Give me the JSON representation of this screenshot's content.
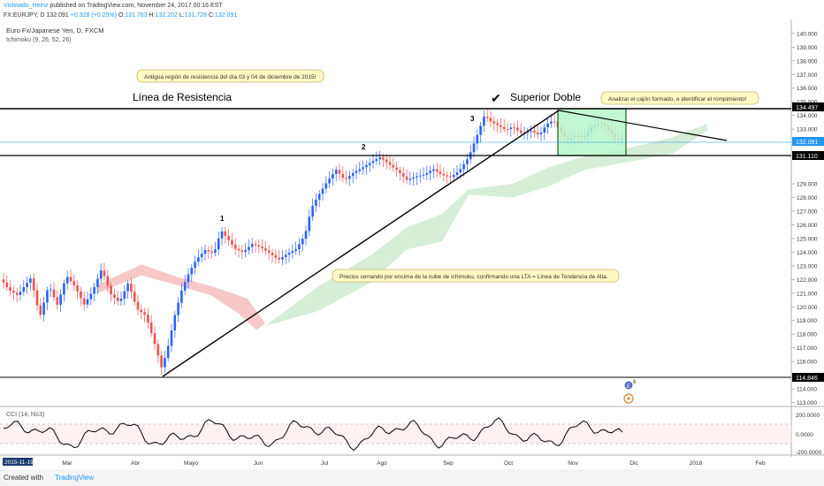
{
  "header": {
    "publisher": "Violinado_Heinz",
    "published_text": "published on TradingView.com, November 24, 2017 00:16 EST",
    "symbol": "FX:EURJPY, D",
    "price": "132.091",
    "change": "+0.328 (+0.25%)",
    "ohlc": {
      "o_label": "O:",
      "o": "131.763",
      "h_label": "H:",
      "h": "132.202",
      "l_label": "L:",
      "l": "131.728",
      "c_label": "C:",
      "c": "132.091"
    }
  },
  "legend": {
    "instrument": "Euro Fx/Japanese Yen, D, FXCM",
    "indicator": "Ichimoku (9, 26, 52, 26)"
  },
  "annotations": {
    "callout_resistance": "Antigua región de resistencia del día 03 y 04 de diciembre de 2015!",
    "linea_resistencia": "Línea de Resistencia",
    "superior_doble": "Superior Doble",
    "callout_box": "Analizar el cajón formado, e identificar el rompimiento!",
    "callout_trend": "Precios cerrando por encima de la nube de ichimoku, confirmando una LTA = Línea de Tendencia de Alta.",
    "checkmark": "✔",
    "wave_1": "1",
    "wave_2": "2",
    "wave_3": "3"
  },
  "price_axis": {
    "ticks": [
      "140.000",
      "139.000",
      "138.000",
      "137.000",
      "136.000",
      "135.000",
      "134.000",
      "133.000",
      "132.000",
      "131.000",
      "130.000",
      "129.000",
      "128.000",
      "127.000",
      "126.000",
      "125.000",
      "124.000",
      "123.000",
      "122.000",
      "121.000",
      "120.000",
      "119.000",
      "118.000",
      "117.000",
      "116.000",
      "115.000",
      "114.000",
      "113.000"
    ],
    "ticks_shown": [
      "140.000",
      "139.000",
      "138.000",
      "137.000",
      "136.000",
      "135.000",
      "134.000",
      "133.000",
      "129.000",
      "128.000",
      "127.000",
      "126.000",
      "125.000",
      "124.000",
      "123.000",
      "122.000",
      "121.000",
      "120.000",
      "119.000",
      "118.000",
      "117.000",
      "116.000",
      "115.000",
      "114.000",
      "113.000"
    ],
    "label_resistance": "134.497",
    "label_current": "132.091",
    "label_support": "131.110",
    "label_low": "114.846"
  },
  "cci": {
    "title": "CCI (14, hlc3)",
    "ticks": [
      "200.0000",
      "0.0000",
      "-200.0000"
    ]
  },
  "time_axis": {
    "start_badge": "2015-11-19",
    "labels": [
      "Mar",
      "Abr",
      "Mayo",
      "Jun",
      "Jul",
      "Ago",
      "Sep",
      "Oct",
      "Nov",
      "Dic",
      "2018",
      "Feb"
    ]
  },
  "events": {
    "badge_e": "E",
    "badge_count": "6"
  },
  "footer": {
    "created_with": "Created with",
    "brand": "TradingView"
  },
  "colors": {
    "bull": "#2962ff",
    "bear": "#ef5350",
    "cloud_bull": "#a5d6a7",
    "cloud_bear": "#ef9a9a",
    "box_fill": "#b9f6ca",
    "current_price": "#2196f3",
    "callout_fill": "#fff9c4"
  },
  "chart_data": {
    "type": "line",
    "title": "Euro Fx/Japanese Yen, D, FXCM",
    "x": [
      "2017-02",
      "2017-03",
      "2017-04",
      "2017-05",
      "2017-06",
      "2017-07",
      "2017-08",
      "2017-09",
      "2017-10",
      "2017-11"
    ],
    "series": [
      {
        "name": "EURJPY close (approx.)",
        "values": [
          120.5,
          119.5,
          116.2,
          124.0,
          124.3,
          129.6,
          130.5,
          131.8,
          133.5,
          132.1
        ]
      }
    ],
    "levels": {
      "resistance": 134.497,
      "support": 131.11,
      "low": 114.846,
      "current": 132.091
    },
    "ylim": [
      112.8,
      140.6
    ],
    "grid": false
  }
}
